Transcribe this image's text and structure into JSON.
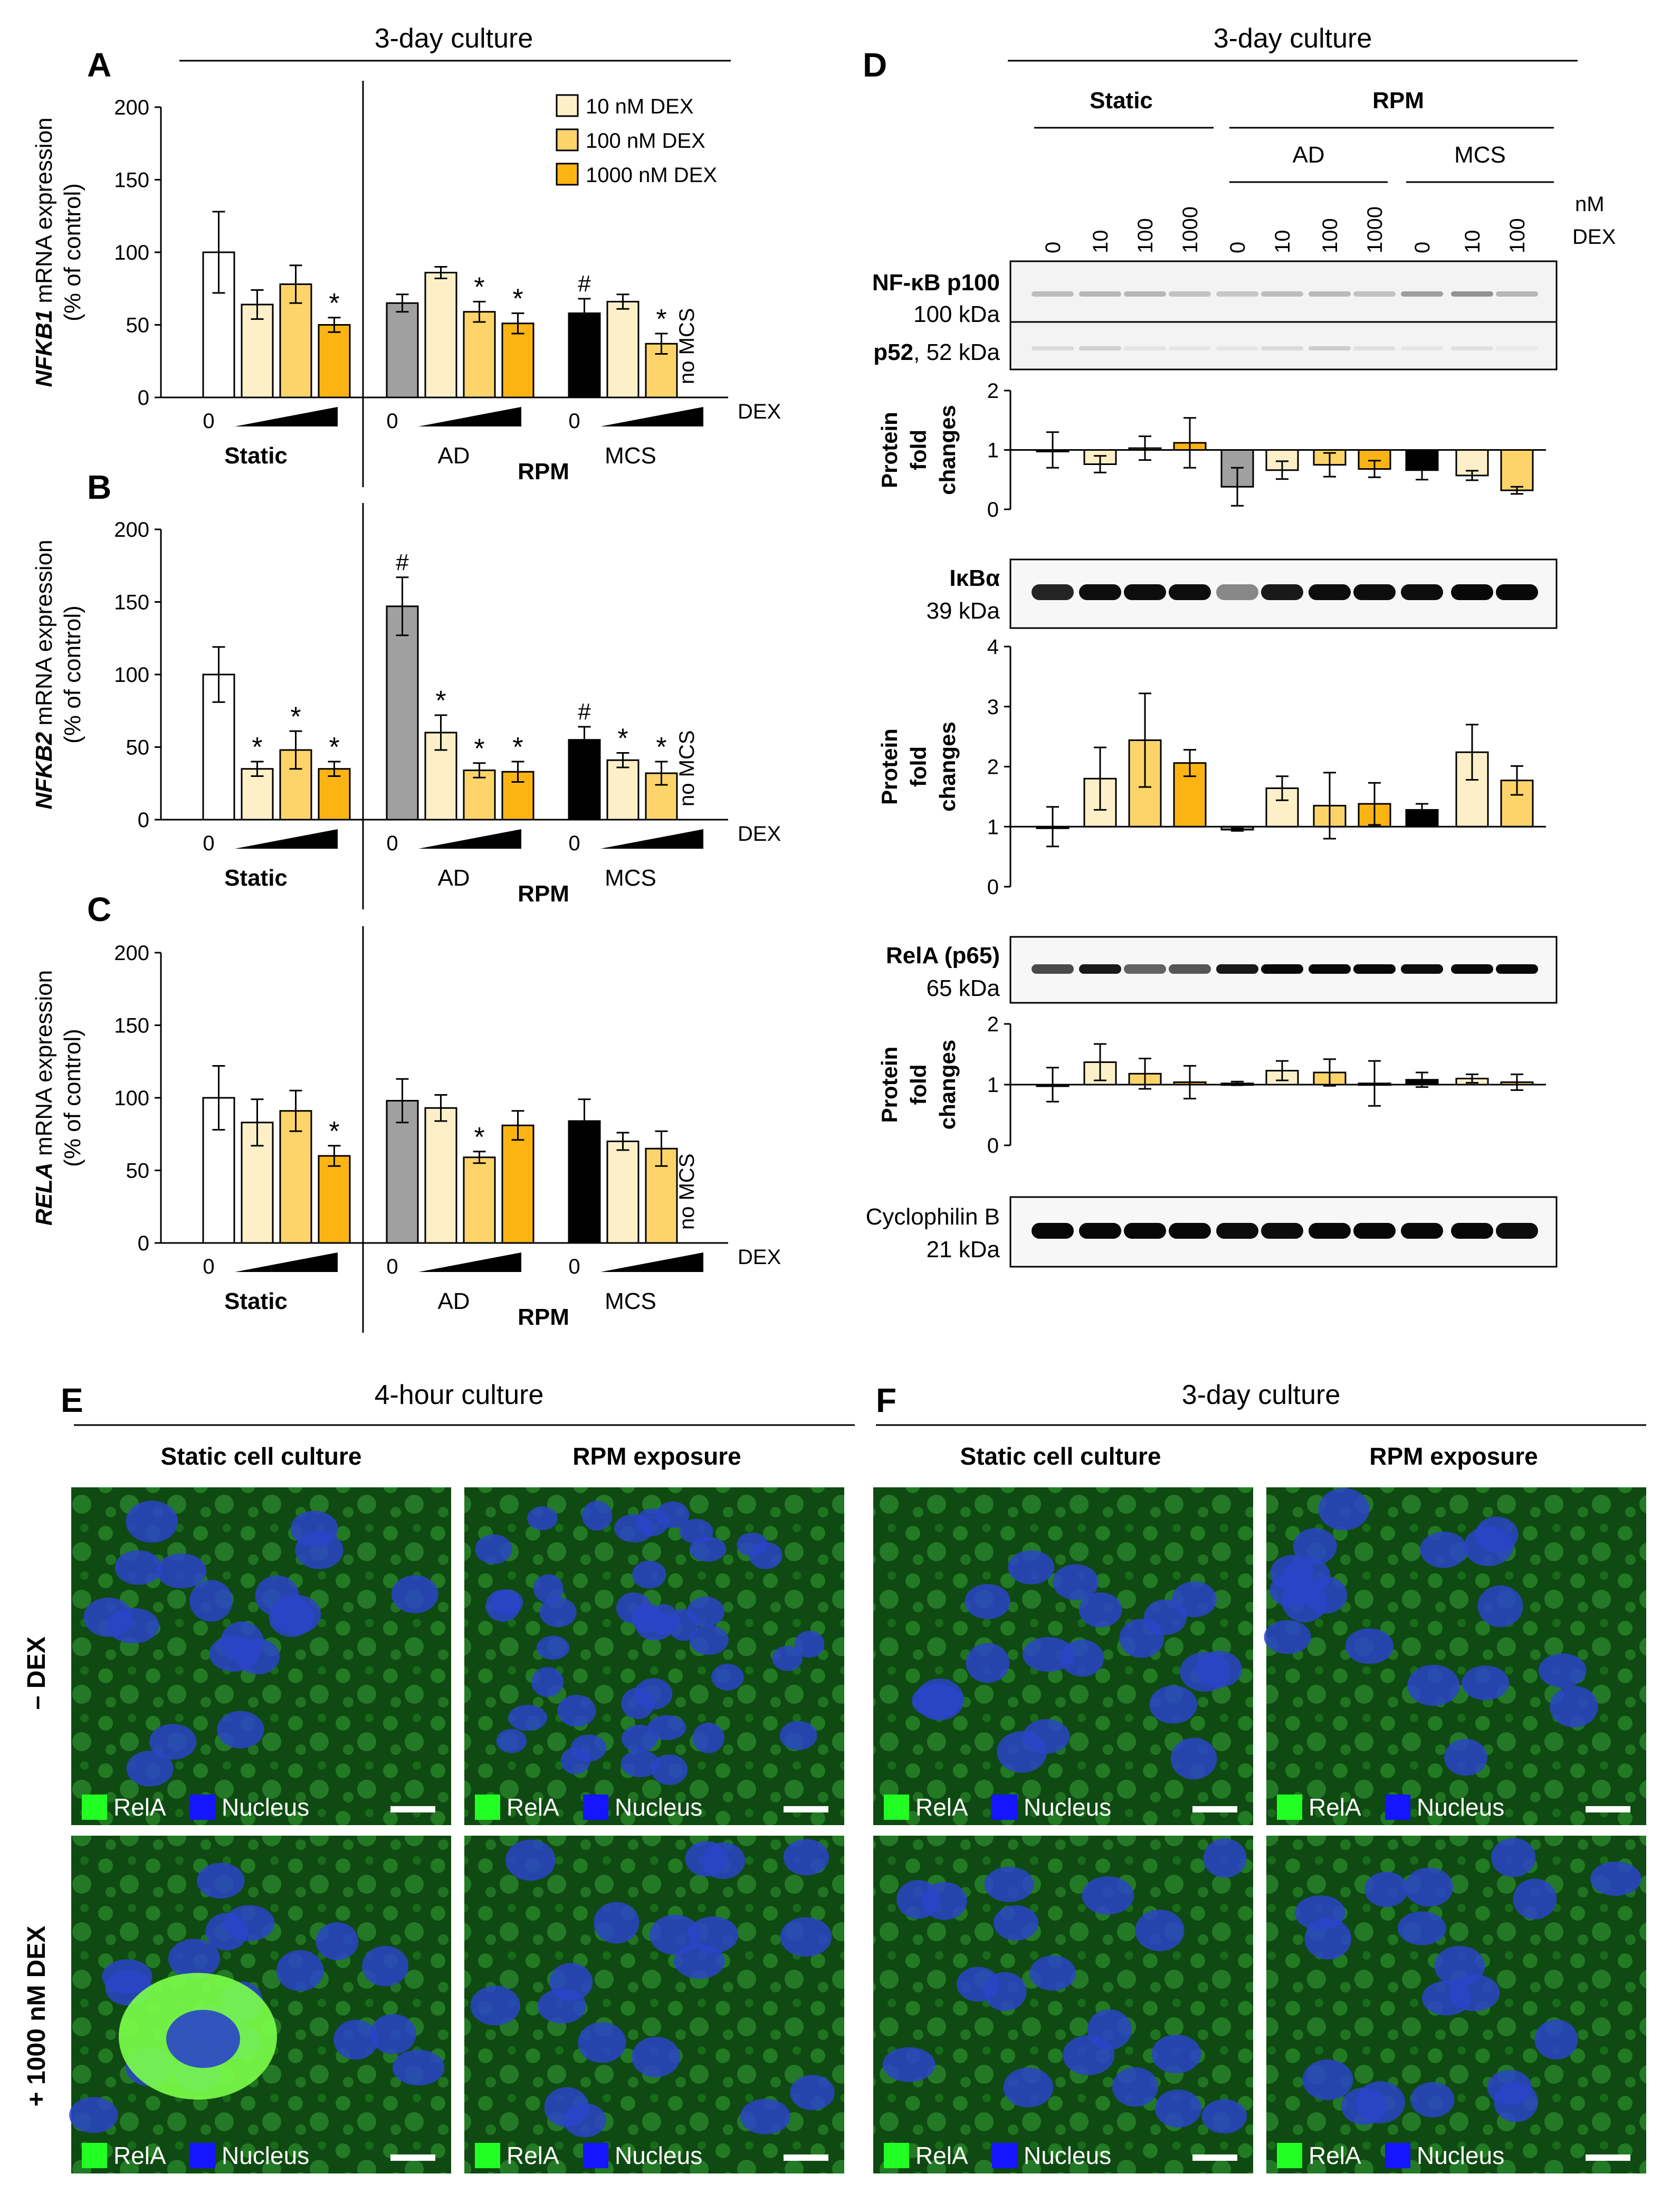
{
  "colors": {
    "white": "#ffffff",
    "light": "#fdf0c8",
    "mid": "#fcd46a",
    "dark": "#fbb414",
    "gray": "#a0a0a0",
    "black": "#000000",
    "relA_green": "#22ff22",
    "nucleus_blue": "#1515ff"
  },
  "legend": [
    "10 nM DEX",
    "100 nM DEX",
    "1000 nM DEX"
  ],
  "header": {
    "abc_title": "3-day culture",
    "d_title": "3-day culture",
    "e_title": "4-hour culture",
    "f_title": "3-day culture"
  },
  "labels": {
    "A": "A",
    "B": "B",
    "C": "C",
    "D": "D",
    "E": "E",
    "F": "F",
    "dex": "DEX",
    "zero": "0",
    "static": "Static",
    "ad": "AD",
    "mcs": "MCS",
    "rpm": "RPM",
    "no_mcs": "no MCS",
    "star": "*",
    "hash": "#",
    "pct_control": "(% of control)",
    "mrna_expression": " mRNA expression"
  },
  "chart_data": [
    {
      "panel": "A",
      "type": "bar",
      "gene": "NFKB1",
      "ylabel": "NFKB1 mRNA expression (% of control)",
      "ylim": [
        0,
        200
      ],
      "yticks": [
        0,
        50,
        100,
        150,
        200
      ],
      "groups": [
        "Static",
        "AD",
        "MCS"
      ],
      "series_conditions": [
        "0",
        "10 nM DEX",
        "100 nM DEX",
        "1000 nM DEX"
      ],
      "values": [
        [
          100,
          64,
          78,
          50
        ],
        [
          65,
          86,
          59,
          51
        ],
        [
          58,
          66,
          37,
          null
        ]
      ],
      "errors": [
        [
          28,
          10,
          13,
          5
        ],
        [
          6,
          4,
          7,
          7
        ],
        [
          10,
          5,
          7,
          null
        ]
      ],
      "stars": [
        [
          false,
          false,
          false,
          true
        ],
        [
          false,
          false,
          true,
          true
        ],
        [
          false,
          false,
          true,
          false
        ]
      ],
      "hash": [
        false,
        false,
        true
      ]
    },
    {
      "panel": "B",
      "type": "bar",
      "gene": "NFKB2",
      "ylabel": "NFKB2 mRNA expression (% of control)",
      "ylim": [
        0,
        200
      ],
      "yticks": [
        0,
        50,
        100,
        150,
        200
      ],
      "groups": [
        "Static",
        "AD",
        "MCS"
      ],
      "series_conditions": [
        "0",
        "10 nM DEX",
        "100 nM DEX",
        "1000 nM DEX"
      ],
      "values": [
        [
          100,
          35,
          48,
          35
        ],
        [
          147,
          60,
          34,
          33
        ],
        [
          55,
          41,
          32,
          null
        ]
      ],
      "errors": [
        [
          19,
          5,
          13,
          5
        ],
        [
          20,
          12,
          5,
          7
        ],
        [
          9,
          5,
          8,
          null
        ]
      ],
      "stars": [
        [
          false,
          true,
          true,
          true
        ],
        [
          false,
          true,
          true,
          true
        ],
        [
          false,
          true,
          true,
          false
        ]
      ],
      "hash": [
        false,
        true,
        true
      ]
    },
    {
      "panel": "C",
      "type": "bar",
      "gene": "RELA",
      "ylabel": "RELA mRNA expression (% of control)",
      "ylim": [
        0,
        200
      ],
      "yticks": [
        0,
        50,
        100,
        150,
        200
      ],
      "groups": [
        "Static",
        "AD",
        "MCS"
      ],
      "series_conditions": [
        "0",
        "10 nM DEX",
        "100 nM DEX",
        "1000 nM DEX"
      ],
      "values": [
        [
          100,
          83,
          91,
          60
        ],
        [
          98,
          93,
          59,
          81
        ],
        [
          84,
          70,
          65,
          null
        ]
      ],
      "errors": [
        [
          22,
          16,
          14,
          7
        ],
        [
          15,
          9,
          4,
          10
        ],
        [
          15,
          6,
          12,
          null
        ]
      ],
      "stars": [
        [
          false,
          false,
          false,
          true
        ],
        [
          false,
          false,
          true,
          false
        ],
        [
          false,
          false,
          false,
          false
        ]
      ],
      "hash": [
        false,
        false,
        false
      ]
    },
    {
      "panel": "D-NFkB-p100",
      "type": "bar",
      "ylabel": "Protein fold changes",
      "ylim": [
        0,
        2
      ],
      "yticks": [
        0,
        1,
        2
      ],
      "values": [
        1.0,
        0.76,
        1.03,
        1.12,
        0.38,
        0.66,
        0.75,
        0.68,
        0.66,
        0.57,
        0.32
      ],
      "errors": [
        0.3,
        0.14,
        0.2,
        0.42,
        0.32,
        0.15,
        0.2,
        0.14,
        0.16,
        0.08,
        0.06
      ]
    },
    {
      "panel": "D-IkBa",
      "type": "bar",
      "ylabel": "Protein fold changes",
      "ylim": [
        0,
        4
      ],
      "yticks": [
        0,
        1,
        2,
        3,
        4
      ],
      "values": [
        1.0,
        1.8,
        2.44,
        2.06,
        0.95,
        1.64,
        1.35,
        1.38,
        1.28,
        2.24,
        1.77
      ],
      "errors": [
        0.33,
        0.52,
        0.78,
        0.22,
        0.02,
        0.2,
        0.55,
        0.35,
        0.1,
        0.46,
        0.24
      ]
    },
    {
      "panel": "D-RelA-p65",
      "type": "bar",
      "ylabel": "Protein fold changes",
      "ylim": [
        0,
        2
      ],
      "yticks": [
        0,
        1,
        2
      ],
      "values": [
        1.0,
        1.37,
        1.18,
        1.04,
        1.02,
        1.23,
        1.2,
        1.02,
        1.08,
        1.1,
        1.04
      ],
      "errors": [
        0.28,
        0.3,
        0.25,
        0.27,
        0.03,
        0.16,
        0.22,
        0.37,
        0.12,
        0.07,
        0.13
      ]
    }
  ],
  "blot": {
    "groups": {
      "static": "Static",
      "rpm": "RPM",
      "ad": "AD",
      "mcs": "MCS"
    },
    "lane_labels": [
      "0",
      "10",
      "100",
      "1000",
      "0",
      "10",
      "100",
      "1000",
      "0",
      "10",
      "100"
    ],
    "unit_line1": "nM",
    "unit_line2": "DEX",
    "nfkb_name": "NF-κB p100",
    "nfkb_size": "100 kDa",
    "p52_name": "p52",
    "p52_size": ", 52 kDa",
    "ikba_name": "IκBα",
    "ikba_size": "39 kDa",
    "rela_name": "RelA (p65)",
    "rela_size": "65 kDa",
    "cyclo_name": "Cyclophilin B",
    "cyclo_size": "21 kDa",
    "protein_label": [
      "Protein",
      "fold",
      "changes"
    ]
  },
  "micro": {
    "static_culture": "Static cell culture",
    "rpm_exposure": "RPM exposure",
    "minus_dex": "– DEX",
    "plus_dex": "+ 1000 nM DEX",
    "legend_rela": "RelA",
    "legend_nucleus": "Nucleus"
  }
}
